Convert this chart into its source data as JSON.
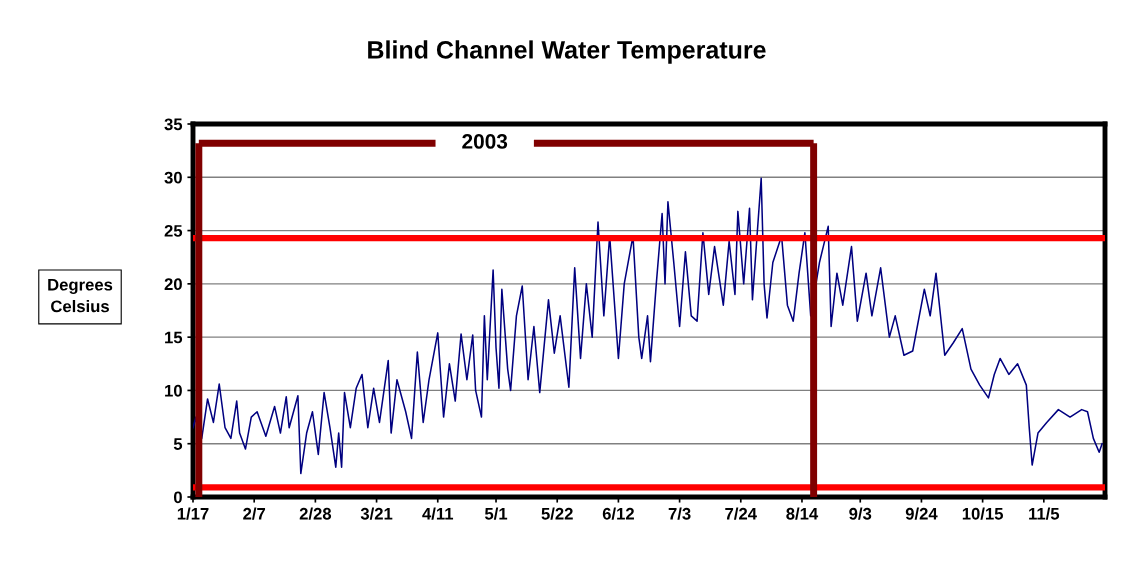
{
  "chart_data": {
    "type": "line",
    "title": "Blind Channel Water Temperature",
    "ylabel": "Degrees\nCelsius",
    "x": [
      "2003-01-17",
      "2003-01-18",
      "2003-01-19",
      "2003-01-20",
      "2003-01-22",
      "2003-01-24",
      "2003-01-26",
      "2003-01-28",
      "2003-01-30",
      "2003-02-01",
      "2003-02-02",
      "2003-02-04",
      "2003-02-06",
      "2003-02-08",
      "2003-02-11",
      "2003-02-14",
      "2003-02-16",
      "2003-02-18",
      "2003-02-19",
      "2003-02-22",
      "2003-02-23",
      "2003-02-25",
      "2003-02-27",
      "2003-03-01",
      "2003-03-03",
      "2003-03-05",
      "2003-03-07",
      "2003-03-08",
      "2003-03-09",
      "2003-03-10",
      "2003-03-12",
      "2003-03-14",
      "2003-03-16",
      "2003-03-18",
      "2003-03-20",
      "2003-03-22",
      "2003-03-25",
      "2003-03-26",
      "2003-03-28",
      "2003-03-31",
      "2003-04-02",
      "2003-04-04",
      "2003-04-06",
      "2003-04-08",
      "2003-04-11",
      "2003-04-13",
      "2003-04-15",
      "2003-04-17",
      "2003-04-19",
      "2003-04-21",
      "2003-04-23",
      "2003-04-24",
      "2003-04-26",
      "2003-04-27",
      "2003-04-28",
      "2003-04-30",
      "2003-05-01",
      "2003-05-02",
      "2003-05-03",
      "2003-05-05",
      "2003-05-06",
      "2003-05-08",
      "2003-05-10",
      "2003-05-12",
      "2003-05-14",
      "2003-05-16",
      "2003-05-19",
      "2003-05-21",
      "2003-05-23",
      "2003-05-26",
      "2003-05-28",
      "2003-05-30",
      "2003-06-01",
      "2003-06-03",
      "2003-06-05",
      "2003-06-07",
      "2003-06-09",
      "2003-06-12",
      "2003-06-14",
      "2003-06-17",
      "2003-06-19",
      "2003-06-20",
      "2003-06-22",
      "2003-06-23",
      "2003-06-25",
      "2003-06-27",
      "2003-06-28",
      "2003-06-29",
      "2003-07-01",
      "2003-07-03",
      "2003-07-05",
      "2003-07-07",
      "2003-07-09",
      "2003-07-11",
      "2003-07-13",
      "2003-07-15",
      "2003-07-18",
      "2003-07-20",
      "2003-07-22",
      "2003-07-23",
      "2003-07-25",
      "2003-07-27",
      "2003-07-28",
      "2003-07-31",
      "2003-08-01",
      "2003-08-02",
      "2003-08-04",
      "2003-08-07",
      "2003-08-09",
      "2003-08-11",
      "2003-08-13",
      "2003-08-15",
      "2003-08-17",
      "2003-08-20",
      "2003-08-23",
      "2003-08-24",
      "2003-08-26",
      "2003-08-28",
      "2003-08-31",
      "2003-09-02",
      "2003-09-05",
      "2003-09-07",
      "2003-09-10",
      "2003-09-13",
      "2003-09-15",
      "2003-09-18",
      "2003-09-21",
      "2003-09-25",
      "2003-09-27",
      "2003-09-29",
      "2003-10-02",
      "2003-10-05",
      "2003-10-08",
      "2003-10-11",
      "2003-10-14",
      "2003-10-17",
      "2003-10-19",
      "2003-10-21",
      "2003-10-24",
      "2003-10-27",
      "2003-10-30",
      "2003-10-31",
      "2003-11-01",
      "2003-11-03",
      "2003-11-06",
      "2003-11-10",
      "2003-11-14",
      "2003-11-18",
      "2003-11-20",
      "2003-11-22",
      "2003-11-24",
      "2003-11-25"
    ],
    "series": [
      {
        "color": "#000080",
        "values": [
          6.5,
          7.5,
          5,
          5.5,
          9.2,
          7,
          10.6,
          6.5,
          5.5,
          9,
          6,
          4.5,
          7.5,
          8,
          5.7,
          8.5,
          6,
          9.4,
          6.5,
          9.5,
          2.2,
          6,
          8,
          4,
          9.8,
          6.5,
          2.8,
          6,
          2.8,
          9.8,
          6.5,
          10.2,
          11.5,
          6.5,
          10.2,
          7,
          12.8,
          6,
          11,
          8,
          5.5,
          13.6,
          7,
          11,
          15.4,
          7.5,
          12.5,
          9,
          15.3,
          11,
          15.2,
          10,
          7.5,
          17,
          11,
          21.3,
          14,
          10.2,
          19.5,
          12,
          10,
          17,
          19.8,
          11,
          16,
          9.8,
          18.5,
          13.5,
          17,
          10.3,
          21.5,
          13,
          20,
          15,
          25.8,
          17,
          24.5,
          13,
          20,
          24.5,
          15,
          13,
          17,
          12.7,
          20,
          26.6,
          20,
          27.7,
          22,
          16,
          23,
          17,
          16.5,
          24.8,
          19,
          23.5,
          18,
          24,
          19,
          26.8,
          20,
          27.1,
          18.5,
          29.9,
          20,
          16.8,
          22,
          24.5,
          18,
          16.5,
          21,
          24.8,
          17,
          22,
          25.4,
          16,
          21,
          18,
          23.5,
          16.5,
          21,
          17,
          21.5,
          15,
          17,
          13.3,
          13.7,
          19.5,
          17,
          21,
          13.3,
          14.5,
          15.8,
          12,
          10.5,
          9.3,
          11.5,
          13,
          11.5,
          12.5,
          10.5,
          6.5,
          3,
          6,
          7,
          8.2,
          7.5,
          8.2,
          8,
          5.5,
          4.2,
          5
        ]
      }
    ],
    "xlim": [
      "2003-01-17",
      "2003-11-26"
    ],
    "xticks": [
      {
        "value": "2003-01-17",
        "label": "1/17"
      },
      {
        "value": "2003-02-07",
        "label": "2/7"
      },
      {
        "value": "2003-02-28",
        "label": "2/28"
      },
      {
        "value": "2003-03-21",
        "label": "3/21"
      },
      {
        "value": "2003-04-11",
        "label": "4/11"
      },
      {
        "value": "2003-05-01",
        "label": "5/1"
      },
      {
        "value": "2003-05-22",
        "label": "5/22"
      },
      {
        "value": "2003-06-12",
        "label": "6/12"
      },
      {
        "value": "2003-07-03",
        "label": "7/3"
      },
      {
        "value": "2003-07-24",
        "label": "7/24"
      },
      {
        "value": "2003-08-14",
        "label": "8/14"
      },
      {
        "value": "2003-09-03",
        "label": "9/3"
      },
      {
        "value": "2003-09-24",
        "label": "9/24"
      },
      {
        "value": "2003-10-15",
        "label": "10/15"
      },
      {
        "value": "2003-11-05",
        "label": "11/5"
      }
    ],
    "ylim": [
      0,
      35
    ],
    "yticks": [
      0,
      5,
      10,
      15,
      20,
      25,
      30,
      35
    ],
    "grid": "y",
    "legend": false,
    "marker": "none",
    "line_style": "solid",
    "ref_lines": [
      {
        "axis": "y",
        "value": 24.3,
        "label": null,
        "color": "#ff0000"
      },
      {
        "axis": "y",
        "value": 0.9,
        "label": null,
        "color": "#ff0000"
      },
      {
        "axis": "x",
        "value": "2003-01-19",
        "label": null,
        "color": "#800000"
      },
      {
        "axis": "x",
        "value": "2003-08-18",
        "label": null,
        "color": "#800000"
      },
      {
        "axis": "y",
        "value": 33.2,
        "label": null,
        "color": "#800000"
      }
    ],
    "annotations": [
      "2003"
    ]
  }
}
